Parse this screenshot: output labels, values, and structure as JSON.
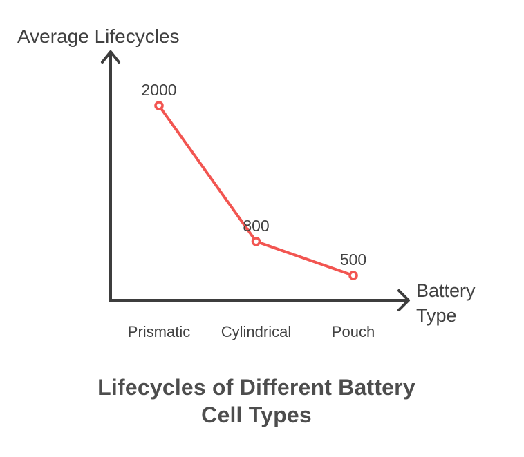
{
  "chart_data": {
    "type": "line",
    "title": "Lifecycles of Different Battery Cell Types",
    "title_lines": [
      "Lifecycles of Different Battery",
      "Cell Types"
    ],
    "ylabel": "Average Lifecycles",
    "xlabel": "Battery Type",
    "xlabel_lines": [
      "Battery",
      "Type"
    ],
    "categories": [
      "Prismatic",
      "Cylindrical",
      "Pouch"
    ],
    "values": [
      2000,
      800,
      500
    ],
    "data_labels": [
      "2000",
      "800",
      "500"
    ],
    "legend_position": "none",
    "grid": false,
    "axis_ticks": "none",
    "colors": {
      "line": "#f25551",
      "marker_fill": "#ffffff",
      "axis": "#3d3d3d",
      "label_text": "#414141",
      "title_text": "#4d4d4d"
    }
  }
}
